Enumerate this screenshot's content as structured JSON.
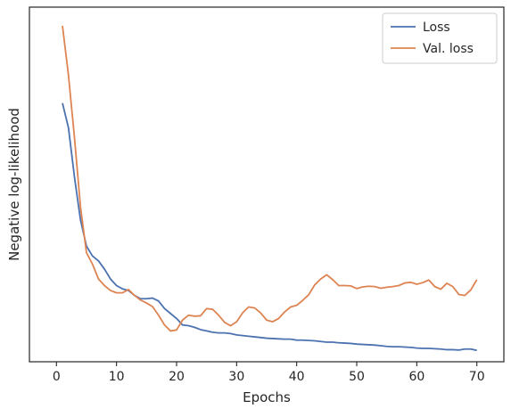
{
  "chart_data": {
    "type": "line",
    "xlabel": "Epochs",
    "ylabel": "Negative log-likelihood",
    "xlim": [
      -4.5,
      74.5
    ],
    "ylim": [
      0.0,
      1.0
    ],
    "y_tick_labels_shown": false,
    "x_ticks": [
      0,
      10,
      20,
      30,
      40,
      50,
      60,
      70
    ],
    "legend_placement": "top-right",
    "grid": false,
    "series": [
      {
        "name": "Loss",
        "color": "#4c72b0",
        "x": [
          1,
          2,
          3,
          4,
          5,
          6,
          7,
          8,
          9,
          10,
          11,
          12,
          13,
          14,
          15,
          16,
          17,
          18,
          19,
          20,
          21,
          22,
          23,
          24,
          25,
          26,
          27,
          28,
          29,
          30,
          31,
          32,
          33,
          34,
          35,
          36,
          37,
          38,
          39,
          40,
          41,
          42,
          43,
          44,
          45,
          46,
          47,
          48,
          49,
          50,
          51,
          52,
          53,
          54,
          55,
          56,
          57,
          58,
          59,
          60,
          61,
          62,
          63,
          64,
          65,
          66,
          67,
          68,
          69,
          70
        ],
        "values": [
          0.765,
          0.69,
          0.54,
          0.41,
          0.33,
          0.3,
          0.285,
          0.26,
          0.23,
          0.21,
          0.2,
          0.195,
          0.18,
          0.17,
          0.17,
          0.172,
          0.163,
          0.14,
          0.125,
          0.11,
          0.09,
          0.088,
          0.083,
          0.076,
          0.072,
          0.068,
          0.066,
          0.066,
          0.064,
          0.06,
          0.058,
          0.056,
          0.054,
          0.052,
          0.05,
          0.049,
          0.048,
          0.047,
          0.047,
          0.044,
          0.044,
          0.043,
          0.042,
          0.04,
          0.038,
          0.038,
          0.036,
          0.035,
          0.034,
          0.032,
          0.031,
          0.03,
          0.029,
          0.027,
          0.025,
          0.024,
          0.024,
          0.023,
          0.022,
          0.02,
          0.019,
          0.019,
          0.018,
          0.017,
          0.015,
          0.015,
          0.014,
          0.017,
          0.017,
          0.013
        ]
      },
      {
        "name": "Val. loss",
        "color": "#dd8452",
        "x": [
          1,
          2,
          3,
          4,
          5,
          6,
          7,
          8,
          9,
          10,
          11,
          12,
          13,
          14,
          15,
          16,
          17,
          18,
          19,
          20,
          21,
          22,
          23,
          24,
          25,
          26,
          27,
          28,
          29,
          30,
          31,
          32,
          33,
          34,
          35,
          36,
          37,
          38,
          39,
          40,
          41,
          42,
          43,
          44,
          45,
          46,
          47,
          48,
          49,
          50,
          51,
          52,
          53,
          54,
          55,
          56,
          57,
          58,
          59,
          60,
          61,
          62,
          63,
          64,
          65,
          66,
          67,
          68,
          69,
          70
        ],
        "values": [
          1.0,
          0.85,
          0.66,
          0.45,
          0.31,
          0.275,
          0.23,
          0.21,
          0.195,
          0.188,
          0.188,
          0.198,
          0.18,
          0.166,
          0.157,
          0.146,
          0.12,
          0.09,
          0.072,
          0.075,
          0.105,
          0.12,
          0.117,
          0.118,
          0.14,
          0.138,
          0.12,
          0.098,
          0.088,
          0.1,
          0.127,
          0.145,
          0.142,
          0.127,
          0.105,
          0.1,
          0.11,
          0.13,
          0.145,
          0.15,
          0.165,
          0.182,
          0.212,
          0.23,
          0.243,
          0.228,
          0.21,
          0.21,
          0.209,
          0.201,
          0.206,
          0.208,
          0.207,
          0.202,
          0.205,
          0.207,
          0.21,
          0.218,
          0.22,
          0.214,
          0.219,
          0.227,
          0.207,
          0.199,
          0.217,
          0.207,
          0.183,
          0.18,
          0.197,
          0.228
        ]
      }
    ]
  }
}
